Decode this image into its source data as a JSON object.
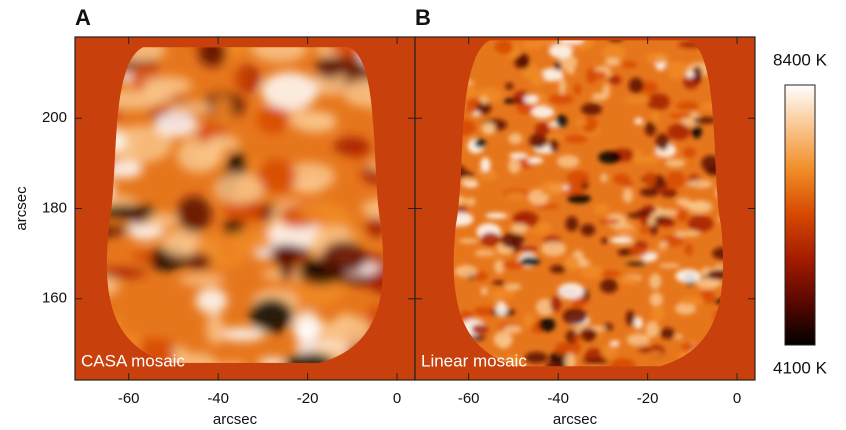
{
  "chart_data": [
    {
      "type": "image",
      "panel": "A",
      "annotation": "CASA mosaic",
      "xlabel": "arcsec",
      "ylabel": "arcsec",
      "xlim": [
        -72,
        4
      ],
      "xticks": [
        -60,
        -40,
        -20,
        0
      ],
      "ylim": [
        142,
        218
      ],
      "yticks": [
        160,
        180,
        200
      ]
    },
    {
      "type": "image",
      "panel": "B",
      "annotation": "Linear mosaic",
      "xlabel": "arcsec",
      "xlim": [
        -72,
        4
      ],
      "xticks": [
        -60,
        -40,
        -20,
        0
      ],
      "ylim": [
        142,
        218
      ],
      "yticks": [
        160,
        180,
        200
      ]
    },
    {
      "type": "colorbar",
      "clim": [
        4100,
        8400
      ],
      "ticks": [
        {
          "value": 4100,
          "label": "4100 K"
        },
        {
          "value": 8400,
          "label": "8400 K"
        }
      ],
      "colors": [
        "#000000",
        "#5a0800",
        "#a41c00",
        "#d64800",
        "#f08a24",
        "#f9c48a",
        "#ffffff"
      ]
    }
  ]
}
